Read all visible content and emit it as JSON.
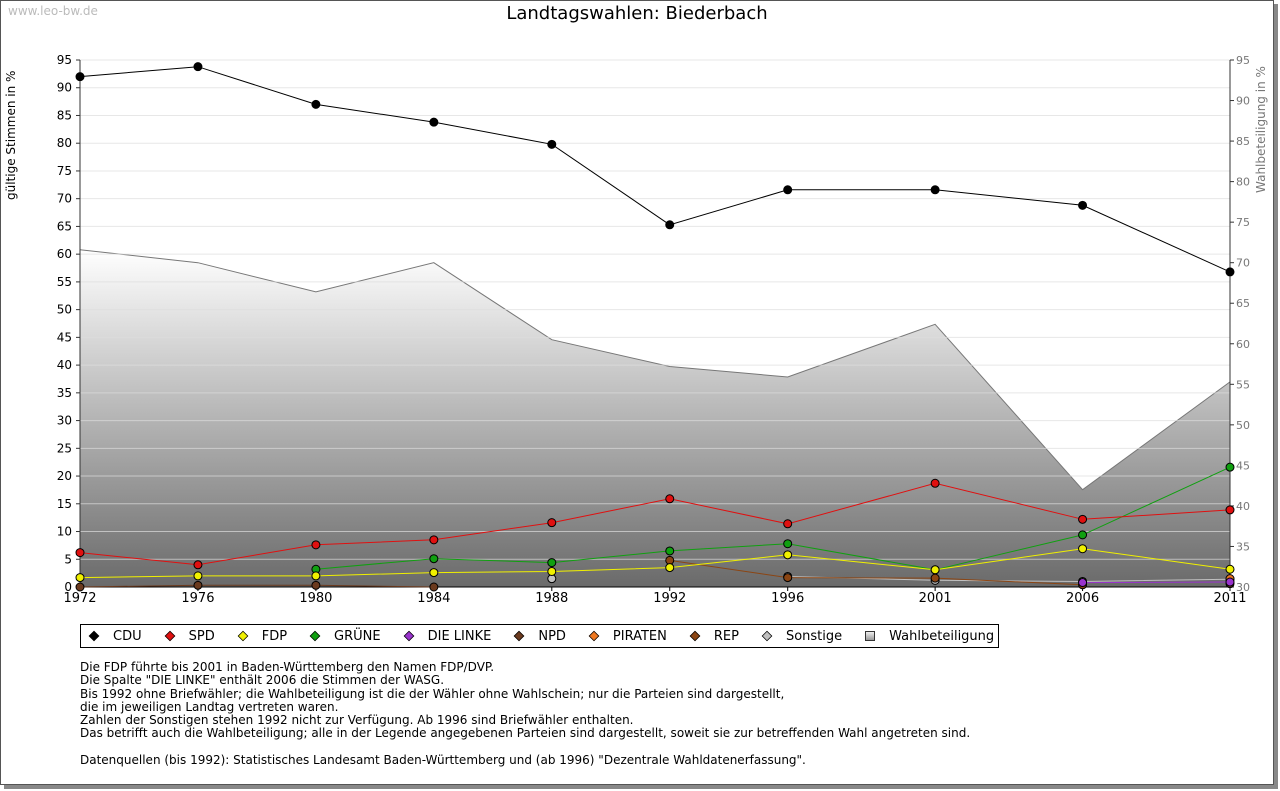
{
  "watermark": "www.leo-bw.de",
  "title": "Landtagswahlen: Biederbach",
  "chart_data": {
    "type": "line",
    "title": "Landtagswahlen: Biederbach",
    "ylabel": "gültige Stimmen in %",
    "y2label": "Wahlbeteiligung in %",
    "categories": [
      "1972",
      "1976",
      "1980",
      "1984",
      "1988",
      "1992",
      "1996",
      "2001",
      "2006",
      "2011"
    ],
    "x": [
      1972,
      1976,
      1980,
      1984,
      1988,
      1992,
      1996,
      2001,
      2006,
      2011
    ],
    "ylim": [
      0,
      95
    ],
    "y2lim": [
      30,
      95
    ],
    "yticks": [
      0,
      5,
      10,
      15,
      20,
      25,
      30,
      35,
      40,
      45,
      50,
      55,
      60,
      65,
      70,
      75,
      80,
      85,
      90,
      95
    ],
    "y2ticks": [
      30,
      35,
      40,
      45,
      50,
      55,
      60,
      65,
      70,
      75,
      80,
      85,
      90,
      95
    ],
    "grid": true,
    "series": [
      {
        "name": "CDU",
        "color": "#000000",
        "values": [
          92.0,
          93.8,
          87.0,
          83.8,
          79.8,
          65.3,
          71.6,
          71.6,
          68.8,
          56.8
        ]
      },
      {
        "name": "SPD",
        "color": "#e01010",
        "values": [
          6.2,
          4.0,
          7.6,
          8.5,
          11.6,
          15.9,
          11.4,
          18.7,
          12.2,
          13.9
        ]
      },
      {
        "name": "FDP",
        "color": "#f0f000",
        "values": [
          1.7,
          2.0,
          2.0,
          2.6,
          2.8,
          3.5,
          5.8,
          3.1,
          6.9,
          3.2
        ]
      },
      {
        "name": "GRÜNE",
        "color": "#10a010",
        "values": [
          null,
          null,
          3.2,
          5.1,
          4.4,
          6.5,
          7.8,
          3.1,
          9.4,
          21.6
        ]
      },
      {
        "name": "DIE LINKE",
        "color": "#9933cc",
        "values": [
          null,
          null,
          null,
          null,
          null,
          null,
          null,
          null,
          0.8,
          0.9
        ]
      },
      {
        "name": "NPD",
        "color": "#6b3a1e",
        "values": [
          0.0,
          0.3,
          0.3,
          0.0,
          null,
          null,
          null,
          null,
          null,
          0.6
        ]
      },
      {
        "name": "PIRATEN",
        "color": "#f07820",
        "values": [
          null,
          null,
          null,
          null,
          null,
          null,
          null,
          null,
          null,
          1.5
        ]
      },
      {
        "name": "REP",
        "color": "#8b4513",
        "values": [
          null,
          null,
          null,
          null,
          null,
          4.8,
          1.7,
          1.6,
          0.4,
          null
        ]
      },
      {
        "name": "Sonstige",
        "color": "#c0c0c0",
        "values": [
          null,
          null,
          null,
          null,
          1.5,
          null,
          1.9,
          1.2,
          1.0,
          1.4
        ]
      }
    ],
    "turnout": {
      "name": "Wahlbeteiligung",
      "values": [
        71.6,
        70.0,
        66.4,
        70.0,
        60.5,
        57.2,
        55.9,
        62.4,
        42.0,
        55.3
      ]
    }
  },
  "legend": [
    {
      "name": "CDU",
      "color": "#000000",
      "shape": "diamond"
    },
    {
      "name": "SPD",
      "color": "#e01010",
      "shape": "diamond"
    },
    {
      "name": "FDP",
      "color": "#f0f000",
      "shape": "diamond"
    },
    {
      "name": "GRÜNE",
      "color": "#10a010",
      "shape": "diamond"
    },
    {
      "name": "DIE LINKE",
      "color": "#9933cc",
      "shape": "diamond"
    },
    {
      "name": "NPD",
      "color": "#6b3a1e",
      "shape": "diamond"
    },
    {
      "name": "PIRATEN",
      "color": "#f07820",
      "shape": "diamond"
    },
    {
      "name": "REP",
      "color": "#8b4513",
      "shape": "diamond"
    },
    {
      "name": "Sonstige",
      "color": "#c0c0c0",
      "shape": "diamond"
    },
    {
      "name": "Wahlbeteiligung",
      "color": "#aaaaaa",
      "shape": "square"
    }
  ],
  "notes": [
    "Die FDP führte bis 2001 in Baden-Württemberg den Namen FDP/DVP.",
    "Die Spalte \"DIE LINKE\" enthält 2006 die Stimmen der WASG.",
    "Bis 1992 ohne Briefwähler; die Wahlbeteiligung ist die der Wähler ohne Wahlschein; nur die Parteien sind dargestellt,",
    "die im jeweiligen Landtag vertreten waren.",
    "Zahlen der Sonstigen stehen 1992 nicht zur Verfügung. Ab 1996 sind Briefwähler enthalten.",
    "Das betrifft auch die Wahlbeteiligung; alle in der Legende angegebenen Parteien sind dargestellt, soweit sie zur betreffenden Wahl angetreten sind.",
    "",
    "Datenquellen (bis 1992): Statistisches Landesamt Baden-Württemberg und (ab 1996) \"Dezentrale Wahldatenerfassung\"."
  ]
}
